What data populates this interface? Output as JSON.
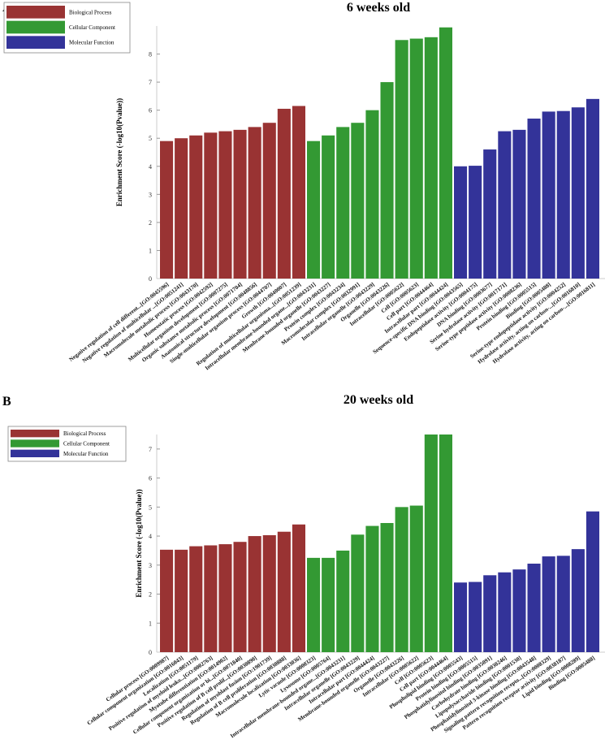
{
  "colors": {
    "biological_process": "#993333",
    "cellular_component": "#339933",
    "molecular_function": "#333399"
  },
  "chart_data": [
    {
      "type": "bar",
      "panel": "A",
      "title": "6 weeks old",
      "xlabel": "",
      "ylabel": "Enrichment Score (-log10(Pvalue))",
      "ylim": [
        0,
        9
      ],
      "yticks": [
        0,
        1,
        2,
        3,
        4,
        5,
        6,
        7,
        8
      ],
      "legend": [
        "Biological Process",
        "Cellular Component",
        "Molecular Function"
      ],
      "legend_position": "top-left",
      "series": [
        {
          "name": "Biological Process",
          "color": "#993333",
          "categories": [
            "Negative regulation of cell different...[GO:0045596]",
            "Negative regulation of multicellular ...[GO:0051241]",
            "Macromolecule metabolic process [GO:0043170]",
            "Homeostatic process [GO:0042592]",
            "Multicellular organism development [GO:0007275]",
            "Organic substance metabolic process [GO:0071704]",
            "Anatomical structure development [GO:0048856]",
            "Single-multicellular organism process [GO:0044707]",
            "Growth [GO:0040007]",
            "Regulation of multicellular organisma...[GO:0051239]"
          ],
          "values": [
            4.9,
            5.0,
            5.1,
            5.2,
            5.25,
            5.3,
            5.4,
            5.55,
            6.05,
            6.15
          ]
        },
        {
          "name": "Cellular Component",
          "color": "#339933",
          "categories": [
            "Intracellular membrane-bounded organe...[GO:0043231]",
            "Membrane-bounded organelle [GO:0043227]",
            "Protein complex [GO:0043234]",
            "Macromolecular complex [GO:0032991]",
            "Intracellular organelle [GO:0043229]",
            "Organelle [GO:0043226]",
            "Intracellular [GO:0005622]",
            "Cell [GO:0005623]",
            "Cell part [GO:0044464]",
            "Intracellular part [GO:0044424]"
          ],
          "values": [
            4.9,
            5.1,
            5.4,
            5.55,
            6.0,
            7.0,
            8.5,
            8.55,
            8.6,
            8.95
          ]
        },
        {
          "name": "Molecular Function",
          "color": "#333399",
          "categories": [
            "Sequence-specific DNA binding [GO:0043565]",
            "Endopeptidase activity [GO:0004175]",
            "DNA binding [GO:0003677]",
            "Serine hydrolase activity [GO:0017171]",
            "Serine-type peptidase activity [GO:0008236]",
            "Protein binding [GO:0005515]",
            "Binding [GO:0005488]",
            "Serine-type endopeptidase activity [GO:0004252]",
            "Hydrolase activity, acting on carbon-...[GO:0016810]",
            "Hydrolase activity, acting on carbon-...[GO:0016811]"
          ],
          "values": [
            4.0,
            4.02,
            4.6,
            5.25,
            5.3,
            5.7,
            5.95,
            5.97,
            6.1,
            6.4
          ]
        }
      ]
    },
    {
      "type": "bar",
      "panel": "B",
      "title": "20 weeks old",
      "xlabel": "",
      "ylabel": "Enrichment Score (-log10(Pvalue))",
      "ylim": [
        0,
        7.5
      ],
      "yticks": [
        0,
        1,
        2,
        3,
        4,
        5,
        6,
        7
      ],
      "legend": [
        "Biological Process",
        "Cellular Component",
        "Molecular Function"
      ],
      "legend_position": "top-left",
      "series": [
        {
          "name": "Biological Process",
          "color": "#993333",
          "categories": [
            "Cellular process [GO:0009987]",
            "Cellular component organization [GO:0016043]",
            "Localization [GO:0051179]",
            "Positive regulation of myeloid leuko...[GO:0002763]",
            "Myotube differentiation [GO:0014902]",
            "Cellular component organization or bi...[GO:0071840]",
            "Positive regulation of B cell prolif...[GO:0030890]",
            "Regulation of myoblast fusion [GO:1901739]",
            "Regulation of B cell proliferation [GO:0030888]",
            "Macromolecule localization [GO:0033036]"
          ],
          "values": [
            3.53,
            3.53,
            3.65,
            3.68,
            3.72,
            3.8,
            4.0,
            4.03,
            4.15,
            4.4
          ]
        },
        {
          "name": "Cellular Component",
          "color": "#339933",
          "categories": [
            "Lytic vacuole [GO:0000323]",
            "Lysosome [GO:0005764]",
            "Intracellular membrane-bounded organe...[GO:0043231]",
            "Intracellular organelle [GO:0043229]",
            "Intracellular part [GO:0044424]",
            "Membrane-bounded organelle [GO:0043227]",
            "Organelle [GO:0043226]",
            "Intracellular [GO:0005622]",
            "Cell [GO:0005623]",
            "Cell part [GO:0044464]"
          ],
          "values": [
            3.25,
            3.25,
            3.5,
            4.05,
            4.35,
            4.45,
            5.0,
            5.05,
            7.5,
            7.5
          ]
        },
        {
          "name": "Molecular Function",
          "color": "#333399",
          "categories": [
            "Phospholipid binding [GO:0005543]",
            "Protein binding [GO:0005515]",
            "Phosphatidylinositol binding [GO:0035091]",
            "Carbohydrate binding [GO:0030246]",
            "Lipopolysaccharide binding [GO:0001530]",
            "Phosphatidylinositol 3-kinase binding [GO:0043548]",
            "Signaling pattern recognition recepto...[GO:0008329]",
            "Pattern recognition receptor activity [GO:0038187]",
            "Lipid binding [GO:0008289]",
            "Binding [GO:0005488]"
          ],
          "values": [
            2.4,
            2.42,
            2.65,
            2.75,
            2.85,
            3.05,
            3.3,
            3.32,
            3.55,
            4.85
          ]
        }
      ]
    }
  ]
}
